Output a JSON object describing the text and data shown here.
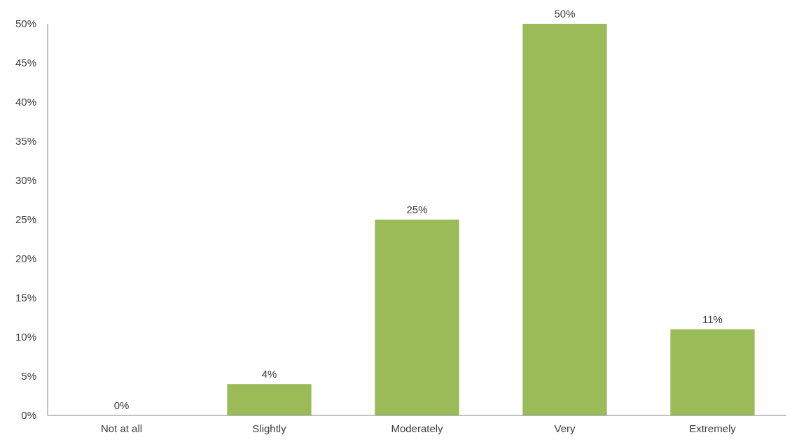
{
  "chart_data": {
    "type": "bar",
    "categories": [
      "Not at all",
      "Slightly",
      "Moderately",
      "Very",
      "Extremely"
    ],
    "values": [
      0,
      4,
      25,
      50,
      11
    ],
    "value_labels": [
      "0%",
      "4%",
      "25%",
      "50%",
      "11%"
    ],
    "color": "#9bbb59",
    "ylim": [
      0,
      50
    ],
    "yticks": [
      {
        "value": 0,
        "label": "0%"
      },
      {
        "value": 5,
        "label": "5%"
      },
      {
        "value": 10,
        "label": "10%"
      },
      {
        "value": 15,
        "label": "15%"
      },
      {
        "value": 20,
        "label": "20%"
      },
      {
        "value": 25,
        "label": "25%"
      },
      {
        "value": 30,
        "label": "30%"
      },
      {
        "value": 35,
        "label": "35%"
      },
      {
        "value": 40,
        "label": "40%"
      },
      {
        "value": 45,
        "label": "45%"
      },
      {
        "value": 50,
        "label": "50%"
      }
    ],
    "grid": false
  }
}
